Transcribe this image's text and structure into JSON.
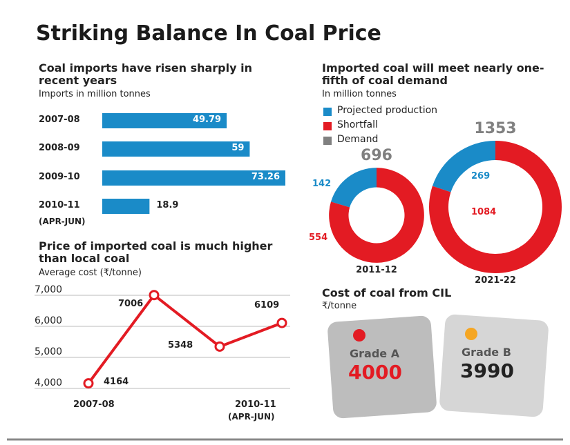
{
  "title": "Striking Balance In Coal Price",
  "chart_data": [
    {
      "type": "bar",
      "orientation": "horizontal",
      "title": "Coal imports have risen sharply in recent years",
      "subtitle": "Imports in million tonnes",
      "categories": [
        "2007-08",
        "2008-09",
        "2009-10",
        "2010-11"
      ],
      "annotations": [
        "(APR-JUN)"
      ],
      "values": [
        49.79,
        59,
        73.26,
        18.9
      ],
      "color": "#1a8bc8"
    },
    {
      "type": "pie",
      "style": "donut",
      "title": "Imported coal will meet nearly one-fifth of coal demand",
      "subtitle": "In million tonnes",
      "categories": [
        "2011-12",
        "2021-22"
      ],
      "series": [
        {
          "name": "Projected production",
          "color": "#1a8bc8",
          "values": [
            142,
            269
          ]
        },
        {
          "name": "Shortfall",
          "color": "#e31b23",
          "values": [
            554,
            1084
          ]
        },
        {
          "name": "Demand",
          "color": "#808080",
          "values": [
            696,
            1353
          ]
        }
      ]
    },
    {
      "type": "line",
      "title": "Price of imported coal is much higher than local coal",
      "subtitle": "Average cost (₹/tonne)",
      "categories": [
        "2007-08",
        null,
        null,
        "2010-11"
      ],
      "annotations": [
        "(APR-JUN)"
      ],
      "values": [
        4164,
        7006,
        5348,
        6109
      ],
      "color": "#e31b23",
      "ylim": [
        4000,
        7000
      ],
      "yticks": [
        {
          "value": 4000,
          "label": "4,000"
        },
        {
          "value": 5000,
          "label": "5,000"
        },
        {
          "value": 6000,
          "label": "6,000"
        },
        {
          "value": 7000,
          "label": "7,000"
        }
      ],
      "grid": true
    },
    {
      "type": "tags",
      "title": "Cost of coal from CIL",
      "subtitle": "₹/tonne",
      "categories": [
        "Grade A",
        "Grade B"
      ],
      "values": [
        4000,
        3990
      ],
      "colors": [
        "#e31b23",
        "#f5a623"
      ],
      "value_colors": [
        "#e31b23",
        "#222222"
      ]
    }
  ]
}
